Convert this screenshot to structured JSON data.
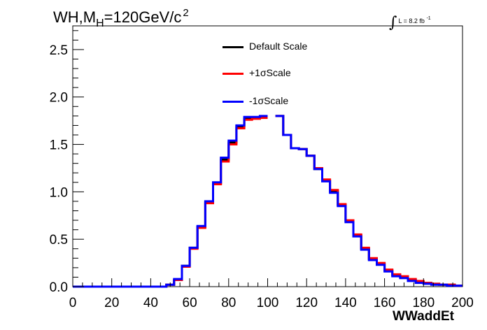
{
  "title": {
    "main": "WH,M",
    "sub": "H",
    "rest": "=120GeV/c",
    "sup": "2"
  },
  "lumi": {
    "text": "L = 8.2 fb",
    "sup": "-1"
  },
  "chart_data": {
    "type": "line",
    "xlabel": "WWaddEt",
    "ylabel": "",
    "xlim": [
      0,
      200
    ],
    "ylim": [
      0,
      2.75
    ],
    "x_ticks": [
      0,
      20,
      40,
      60,
      80,
      100,
      120,
      140,
      160,
      180,
      200
    ],
    "x_tick_labels": [
      "0",
      "20",
      "40",
      "60",
      "80",
      "100",
      "120",
      "140",
      "160",
      "180",
      "200"
    ],
    "y_ticks": [
      0,
      0.5,
      1.0,
      1.5,
      2.0,
      2.5
    ],
    "y_tick_labels": [
      "0.0",
      "0.5",
      "1.0",
      "1.5",
      "2.0",
      "2.5"
    ],
    "bin_edges": [
      0,
      4,
      8,
      12,
      16,
      20,
      24,
      28,
      32,
      36,
      40,
      44,
      48,
      52,
      56,
      60,
      64,
      68,
      72,
      76,
      80,
      84,
      88,
      92,
      96,
      100,
      104,
      108,
      112,
      116,
      120,
      124,
      128,
      132,
      136,
      140,
      144,
      148,
      152,
      156,
      160,
      164,
      168,
      172,
      176,
      180,
      184,
      188,
      192,
      196,
      200
    ],
    "series": [
      {
        "name": "Default Scale",
        "color": "#000000",
        "values": [
          0,
          0,
          0,
          0,
          0,
          0,
          0,
          0,
          0,
          0,
          0,
          0,
          0.02,
          0.07,
          0.22,
          0.41,
          0.63,
          0.89,
          1.09,
          1.34,
          1.52,
          1.69,
          1.77,
          1.78,
          1.79,
          null,
          1.8,
          1.6,
          1.46,
          1.45,
          1.38,
          1.24,
          1.12,
          1.01,
          0.86,
          0.69,
          0.54,
          0.4,
          0.29,
          0.24,
          0.17,
          0.12,
          0.1,
          0.07,
          0.05,
          0.04,
          0.03,
          0.02,
          0.02,
          0.01
        ]
      },
      {
        "name": "+1σScale",
        "color": "#ff0000",
        "values": [
          0,
          0,
          0,
          0,
          0,
          0,
          0,
          0,
          0,
          0,
          0,
          0,
          0.02,
          0.07,
          0.21,
          0.4,
          0.62,
          0.88,
          1.08,
          1.32,
          1.5,
          1.67,
          1.76,
          1.77,
          1.78,
          null,
          1.8,
          1.6,
          1.46,
          1.45,
          1.38,
          1.25,
          1.13,
          1.02,
          0.87,
          0.7,
          0.55,
          0.41,
          0.3,
          0.25,
          0.18,
          0.13,
          0.11,
          0.08,
          0.06,
          0.04,
          0.03,
          0.02,
          0.02,
          0.01
        ]
      },
      {
        "name": "-1σScale",
        "color": "#0000ff",
        "values": [
          0,
          0,
          0,
          0,
          0,
          0,
          0,
          0,
          0,
          0,
          0,
          0,
          0.02,
          0.08,
          0.22,
          0.41,
          0.64,
          0.9,
          1.1,
          1.36,
          1.54,
          1.7,
          1.79,
          1.79,
          1.8,
          null,
          1.8,
          1.6,
          1.46,
          1.45,
          1.38,
          1.24,
          1.11,
          0.99,
          0.85,
          0.68,
          0.53,
          0.39,
          0.28,
          0.23,
          0.16,
          0.11,
          0.09,
          0.06,
          0.04,
          0.03,
          0.02,
          0.02,
          0.01,
          0.01
        ]
      }
    ]
  }
}
